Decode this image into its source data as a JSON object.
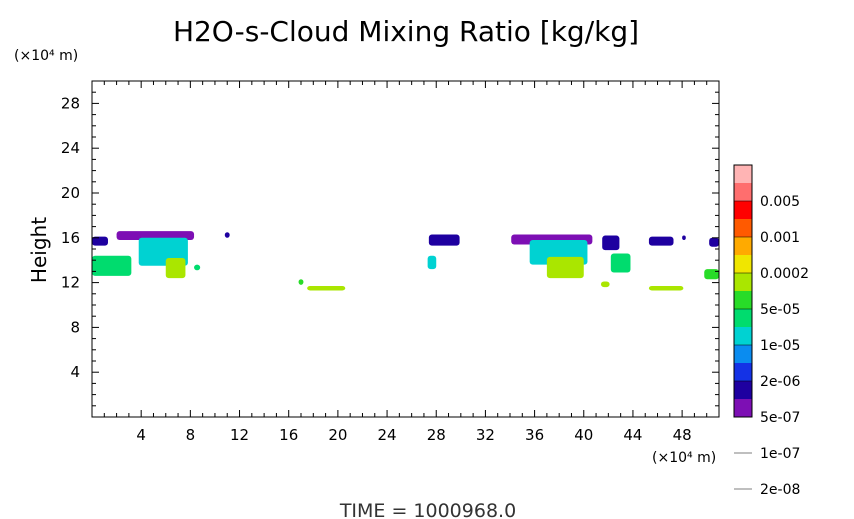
{
  "chart_data": {
    "type": "heatmap",
    "title": "H2O-s-Cloud Mixing Ratio [kg/kg]",
    "ylabel": "Height",
    "xunit": "(×10⁴ m)",
    "yunit": "(×10⁴ m)",
    "xlim": [
      0,
      51
    ],
    "ylim": [
      0,
      30
    ],
    "xticks": [
      "4",
      "8",
      "12",
      "16",
      "20",
      "24",
      "28",
      "32",
      "36",
      "40",
      "44",
      "48"
    ],
    "xtick_values": [
      4,
      8,
      12,
      16,
      20,
      24,
      28,
      32,
      36,
      40,
      44,
      48
    ],
    "yticks": [
      "4",
      "8",
      "12",
      "16",
      "20",
      "24",
      "28"
    ],
    "ytick_values": [
      4,
      8,
      12,
      16,
      20,
      24,
      28
    ],
    "colorbar": {
      "labels": [
        "0.005",
        "0.001",
        "0.0002",
        "5e-05",
        "1e-05",
        "2e-06",
        "5e-07",
        "1e-07",
        "2e-08"
      ],
      "colors": [
        "#7d0fb4",
        "#1e00a0",
        "#1432e6",
        "#0a8cf0",
        "#00d2d2",
        "#00dc6e",
        "#28dc28",
        "#aae600",
        "#f0e600",
        "#ffaa00",
        "#ff5a00",
        "#ff0000",
        "#ff6e6e",
        "#ffb4b4"
      ]
    },
    "cloud_regions": [
      {
        "x": [
          0,
          1.3
        ],
        "y": [
          15.3,
          16.1
        ],
        "level": 1
      },
      {
        "x": [
          0,
          3.2
        ],
        "y": [
          12.6,
          14.4
        ],
        "level": 5
      },
      {
        "x": [
          2,
          8.3
        ],
        "y": [
          15.8,
          16.6
        ],
        "level": 0
      },
      {
        "x": [
          3.8,
          7.8
        ],
        "y": [
          13.5,
          16.0
        ],
        "level": 4
      },
      {
        "x": [
          6,
          7.6
        ],
        "y": [
          12.4,
          14.2
        ],
        "level": 7
      },
      {
        "x": [
          8.3,
          8.8
        ],
        "y": [
          13.1,
          13.6
        ],
        "level": 5
      },
      {
        "x": [
          10.8,
          11.2
        ],
        "y": [
          16.0,
          16.5
        ],
        "level": 1
      },
      {
        "x": [
          16.8,
          17.2
        ],
        "y": [
          11.8,
          12.3
        ],
        "level": 6
      },
      {
        "x": [
          17.5,
          20.6
        ],
        "y": [
          11.3,
          11.7
        ],
        "level": 7
      },
      {
        "x": [
          27.4,
          29.9
        ],
        "y": [
          15.3,
          16.3
        ],
        "level": 1
      },
      {
        "x": [
          27.3,
          28.0
        ],
        "y": [
          13.2,
          14.4
        ],
        "level": 4
      },
      {
        "x": [
          34.1,
          40.7
        ],
        "y": [
          15.4,
          16.3
        ],
        "level": 0
      },
      {
        "x": [
          35.6,
          40.3
        ],
        "y": [
          13.6,
          15.8
        ],
        "level": 4
      },
      {
        "x": [
          37.0,
          40.0
        ],
        "y": [
          12.4,
          14.3
        ],
        "level": 7
      },
      {
        "x": [
          41.5,
          42.9
        ],
        "y": [
          14.9,
          16.2
        ],
        "level": 1
      },
      {
        "x": [
          42.2,
          43.8
        ],
        "y": [
          12.9,
          14.6
        ],
        "level": 5
      },
      {
        "x": [
          41.4,
          42.1
        ],
        "y": [
          11.6,
          12.1
        ],
        "level": 7
      },
      {
        "x": [
          45.3,
          47.3
        ],
        "y": [
          15.3,
          16.1
        ],
        "level": 1
      },
      {
        "x": [
          45.3,
          48.1
        ],
        "y": [
          11.3,
          11.7
        ],
        "level": 7
      },
      {
        "x": [
          48.0,
          48.3
        ],
        "y": [
          15.8,
          16.2
        ],
        "level": 1
      },
      {
        "x": [
          50.2,
          51.0
        ],
        "y": [
          15.2,
          16.0
        ],
        "level": 1
      },
      {
        "x": [
          49.8,
          51.0
        ],
        "y": [
          12.3,
          13.2
        ],
        "level": 6
      }
    ]
  },
  "footer": {
    "time_label": "TIME = 1000968.0"
  }
}
